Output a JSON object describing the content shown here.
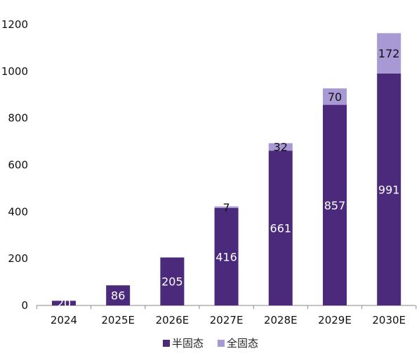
{
  "chart_data": {
    "type": "bar",
    "stacked": true,
    "categories": [
      "2024",
      "2025E",
      "2026E",
      "2027E",
      "2028E",
      "2029E",
      "2030E"
    ],
    "series": [
      {
        "name": "半固态",
        "values": [
          20,
          86,
          205,
          416,
          661,
          857,
          991
        ],
        "color": "#4b2a7b",
        "label_color": "#ffffff"
      },
      {
        "name": "全固态",
        "values": [
          0,
          0,
          0,
          7,
          32,
          70,
          172
        ],
        "color": "#a898d4",
        "label_color": "#111111"
      }
    ],
    "data_labels": [
      [
        "20",
        "86",
        "205",
        "416",
        "661",
        "857",
        "991"
      ],
      [
        "",
        "",
        "",
        "7",
        "32",
        "70",
        "172"
      ]
    ],
    "y_ticks": [
      "0",
      "200",
      "400",
      "600",
      "800",
      "1000",
      "1200"
    ],
    "ylim": [
      0,
      1200
    ],
    "grid": false,
    "legend_position": "bottom-center",
    "title": "",
    "xlabel": "",
    "ylabel": ""
  }
}
